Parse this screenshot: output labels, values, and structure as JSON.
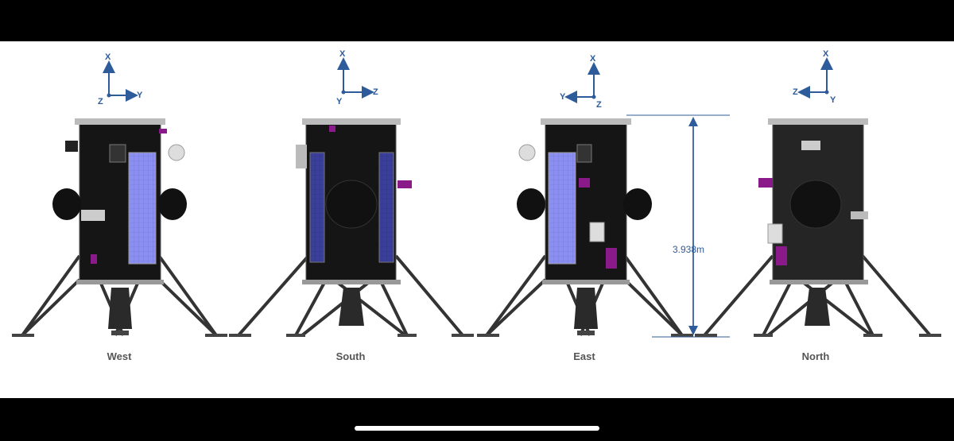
{
  "views": [
    {
      "label": "West",
      "axes": {
        "up": "X",
        "right": "Y",
        "origin": "Z"
      }
    },
    {
      "label": "South",
      "axes": {
        "up": "X",
        "right": "Z",
        "origin": "Y"
      }
    },
    {
      "label": "East",
      "axes": {
        "up": "X",
        "left": "Y",
        "origin": "Z"
      }
    },
    {
      "label": "North",
      "axes": {
        "up": "X",
        "left": "Z",
        "origin": "Y"
      }
    }
  ],
  "dimension": {
    "height_label": "3.938m"
  },
  "colors": {
    "axis_blue": "#2e5b9a",
    "solar_panel": "#8a8ff0",
    "body": "#151515",
    "accent_magenta": "#8a1a8a"
  }
}
